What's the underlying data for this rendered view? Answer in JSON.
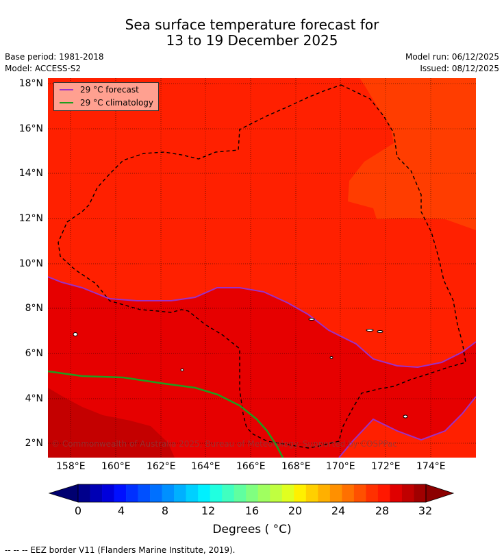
{
  "title": {
    "line1": "Sea surface temperature forecast for",
    "line2": "13 to 19 December 2025"
  },
  "header": {
    "base_period": "Base period: 1981-2018",
    "model": "Model: ACCESS-S2",
    "model_run": "Model run: 06/12/2025",
    "issued": "Issued: 08/12/2025"
  },
  "map": {
    "lat_labels": [
      "18°N",
      "16°N",
      "14°N",
      "12°N",
      "10°N",
      "8°N",
      "6°N",
      "4°N",
      "2°N"
    ],
    "lon_labels": [
      "158°E",
      "160°E",
      "162°E",
      "164°E",
      "166°E",
      "168°E",
      "170°E",
      "172°E",
      "174°E"
    ],
    "credit": "© Commonwealth of Australia 2025, Bureau of Meteorology. Supported by COSPPac",
    "region_colors": {
      "very_warm": "#ff3d00",
      "warm": "#ff2000",
      "hot": "#e60000",
      "hottest": "#c40000"
    }
  },
  "legend": {
    "forecast_label": "29 °C  forecast",
    "forecast_color": "#9b30c8",
    "climatology_label": "29 °C  climatology",
    "climatology_color": "#1e9e1e"
  },
  "colorbar": {
    "tick_labels": [
      "0",
      "4",
      "8",
      "12",
      "16",
      "20",
      "24",
      "28",
      "32"
    ],
    "title": "Degrees ( °C)",
    "colors": [
      "#00008c",
      "#0000b4",
      "#0000dc",
      "#0010ff",
      "#0030ff",
      "#0050ff",
      "#0070ff",
      "#0090ff",
      "#00b0ff",
      "#00d0ff",
      "#00f0ff",
      "#20ffe0",
      "#40ffc0",
      "#60ffa0",
      "#80ff80",
      "#a0ff60",
      "#c0ff40",
      "#e0ff20",
      "#fff000",
      "#ffd000",
      "#ffb000",
      "#ff9000",
      "#ff7000",
      "#ff5000",
      "#ff3000",
      "#ff1800",
      "#e00000",
      "#c00000",
      "#a00000"
    ],
    "under_color": "#000070",
    "over_color": "#8c0000"
  },
  "footnote": "--  --  -- EEZ border V11 (Flanders Marine Institute, 2019)."
}
